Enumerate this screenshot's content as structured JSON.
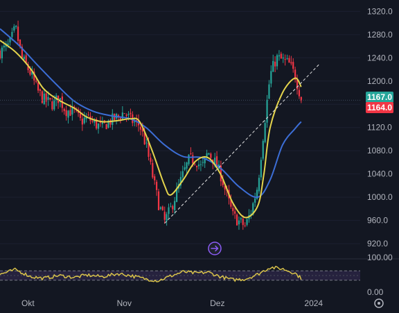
{
  "chart_data": {
    "type": "candlestick",
    "price_axis": {
      "ticks": [
        "1320.0",
        "1280.0",
        "1240.0",
        "1200.0",
        "1160.0",
        "1120.0",
        "1080.0",
        "1040.0",
        "1000.0",
        "960.0",
        "920.0"
      ],
      "range": [
        895,
        1330
      ]
    },
    "rsi_axis": {
      "ticks": [
        "100.00",
        "0.00"
      ],
      "range": [
        0,
        100
      ],
      "band": [
        30,
        70
      ]
    },
    "time_axis": {
      "labels": [
        "Okt",
        "Nov",
        "Dez",
        "2024"
      ],
      "range": [
        "2023-09-22",
        "2024-01-16"
      ]
    },
    "price_badges": {
      "upper": {
        "text": "1167.0",
        "color": "#26a69a"
      },
      "lower": {
        "text": "1164.0",
        "color": "#f23645"
      }
    },
    "colors": {
      "up": "#26a69a",
      "down": "#f23645",
      "ma_fast": "#e4d44d",
      "ma_slow": "#3c6ed6",
      "rsi_line": "#d8c24a",
      "rsi_fill": "#7e57c2",
      "trendline": "#e6e6e6"
    },
    "close_series": [
      [
        "2023-09-22",
        1250
      ],
      [
        "2023-09-25",
        1262
      ],
      [
        "2023-09-27",
        1292
      ],
      [
        "2023-09-29",
        1240
      ],
      [
        "2023-10-02",
        1212
      ],
      [
        "2023-10-04",
        1184
      ],
      [
        "2023-10-06",
        1168
      ],
      [
        "2023-10-09",
        1160
      ],
      [
        "2023-10-11",
        1172
      ],
      [
        "2023-10-13",
        1150
      ],
      [
        "2023-10-16",
        1147
      ],
      [
        "2023-10-18",
        1130
      ],
      [
        "2023-10-20",
        1137
      ],
      [
        "2023-10-23",
        1125
      ],
      [
        "2023-10-25",
        1120
      ],
      [
        "2023-10-27",
        1130
      ],
      [
        "2023-10-30",
        1138
      ],
      [
        "2023-11-01",
        1147
      ],
      [
        "2023-11-03",
        1133
      ],
      [
        "2023-11-06",
        1124
      ],
      [
        "2023-11-08",
        1090
      ],
      [
        "2023-11-10",
        1040
      ],
      [
        "2023-11-12",
        990
      ],
      [
        "2023-11-14",
        958
      ],
      [
        "2023-11-16",
        980
      ],
      [
        "2023-11-18",
        1010
      ],
      [
        "2023-11-20",
        1040
      ],
      [
        "2023-11-22",
        1066
      ],
      [
        "2023-11-24",
        1064
      ],
      [
        "2023-11-26",
        1050
      ],
      [
        "2023-11-28",
        1078
      ],
      [
        "2023-11-30",
        1062
      ],
      [
        "2023-12-02",
        1040
      ],
      [
        "2023-12-04",
        1004
      ],
      [
        "2023-12-06",
        968
      ],
      [
        "2023-12-08",
        958
      ],
      [
        "2023-12-10",
        950
      ],
      [
        "2023-12-12",
        978
      ],
      [
        "2023-12-14",
        1020
      ],
      [
        "2023-12-16",
        1120
      ],
      [
        "2023-12-18",
        1210
      ],
      [
        "2023-12-20",
        1240
      ],
      [
        "2023-12-22",
        1236
      ],
      [
        "2023-12-24",
        1230
      ],
      [
        "2023-12-26",
        1210
      ],
      [
        "2023-12-28",
        1170
      ]
    ],
    "ma_fast": [
      [
        "2023-09-22",
        1270
      ],
      [
        "2023-09-27",
        1250
      ],
      [
        "2023-10-02",
        1220
      ],
      [
        "2023-10-06",
        1187
      ],
      [
        "2023-10-11",
        1167
      ],
      [
        "2023-10-16",
        1153
      ],
      [
        "2023-10-20",
        1138
      ],
      [
        "2023-10-25",
        1130
      ],
      [
        "2023-10-30",
        1132
      ],
      [
        "2023-11-03",
        1135
      ],
      [
        "2023-11-06",
        1130
      ],
      [
        "2023-11-10",
        1080
      ],
      [
        "2023-11-14",
        1020
      ],
      [
        "2023-11-16",
        1004
      ],
      [
        "2023-11-20",
        1030
      ],
      [
        "2023-11-24",
        1062
      ],
      [
        "2023-11-28",
        1068
      ],
      [
        "2023-12-02",
        1040
      ],
      [
        "2023-12-06",
        990
      ],
      [
        "2023-12-10",
        965
      ],
      [
        "2023-12-14",
        985
      ],
      [
        "2023-12-16",
        1040
      ],
      [
        "2023-12-18",
        1120
      ],
      [
        "2023-12-22",
        1180
      ],
      [
        "2023-12-26",
        1205
      ],
      [
        "2023-12-28",
        1190
      ]
    ],
    "ma_slow": [
      [
        "2023-09-22",
        1290
      ],
      [
        "2023-09-28",
        1262
      ],
      [
        "2023-10-04",
        1228
      ],
      [
        "2023-10-10",
        1195
      ],
      [
        "2023-10-16",
        1165
      ],
      [
        "2023-10-22",
        1148
      ],
      [
        "2023-10-28",
        1140
      ],
      [
        "2023-11-03",
        1135
      ],
      [
        "2023-11-08",
        1120
      ],
      [
        "2023-11-14",
        1090
      ],
      [
        "2023-11-20",
        1070
      ],
      [
        "2023-11-26",
        1068
      ],
      [
        "2023-12-02",
        1050
      ],
      [
        "2023-12-08",
        1018
      ],
      [
        "2023-12-14",
        1000
      ],
      [
        "2023-12-18",
        1030
      ],
      [
        "2023-12-22",
        1090
      ],
      [
        "2023-12-26",
        1118
      ],
      [
        "2023-12-28",
        1130
      ]
    ],
    "trendline": {
      "from": [
        "2023-11-14",
        955
      ],
      "to": [
        "2024-01-03",
        1230
      ]
    },
    "rsi_series": [
      [
        "2023-09-22",
        55
      ],
      [
        "2023-09-27",
        75
      ],
      [
        "2023-10-02",
        45
      ],
      [
        "2023-10-06",
        38
      ],
      [
        "2023-10-11",
        50
      ],
      [
        "2023-10-16",
        42
      ],
      [
        "2023-10-20",
        52
      ],
      [
        "2023-10-25",
        45
      ],
      [
        "2023-10-30",
        58
      ],
      [
        "2023-11-03",
        50
      ],
      [
        "2023-11-08",
        35
      ],
      [
        "2023-11-12",
        28
      ],
      [
        "2023-11-16",
        48
      ],
      [
        "2023-11-20",
        66
      ],
      [
        "2023-11-24",
        60
      ],
      [
        "2023-11-28",
        64
      ],
      [
        "2023-12-02",
        45
      ],
      [
        "2023-12-06",
        32
      ],
      [
        "2023-12-10",
        35
      ],
      [
        "2023-12-14",
        55
      ],
      [
        "2023-12-18",
        85
      ],
      [
        "2023-12-22",
        78
      ],
      [
        "2023-12-26",
        60
      ],
      [
        "2023-12-28",
        38
      ]
    ]
  }
}
